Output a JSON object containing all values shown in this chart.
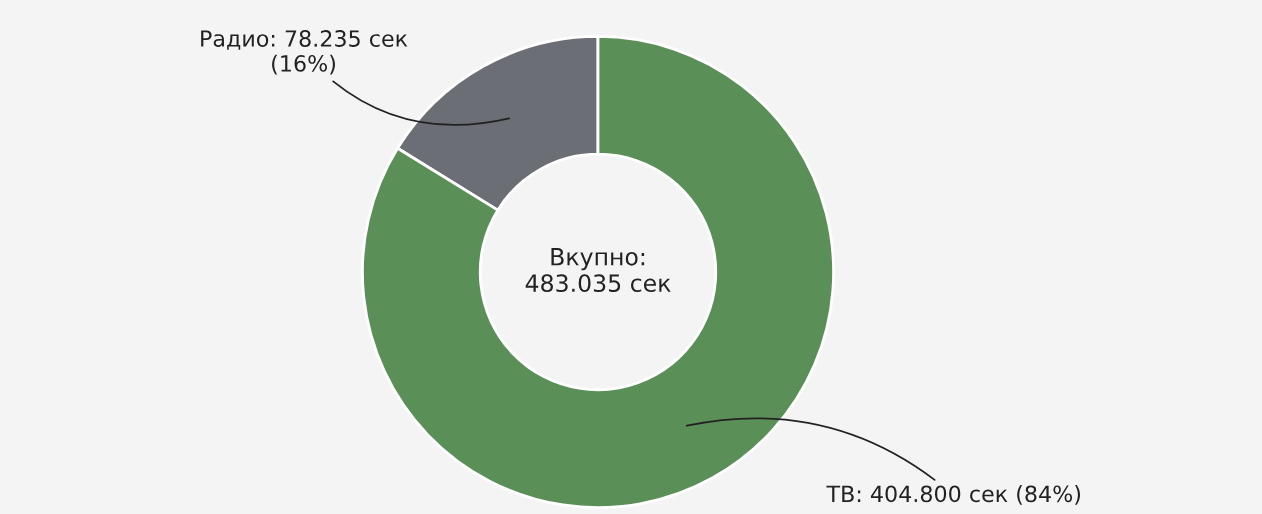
{
  "chart_data": {
    "type": "donut",
    "categories": [
      "Радио",
      "ТВ"
    ],
    "values": [
      78235,
      404800
    ],
    "colors": [
      "#6b6e74",
      "#5b8f58"
    ],
    "value_labels": [
      "78.235 сек\n(16%)",
      "404.800 сек (84%)"
    ],
    "annotations": [
      "Вкупно:\n483.035 сек"
    ],
    "legend": false
  }
}
